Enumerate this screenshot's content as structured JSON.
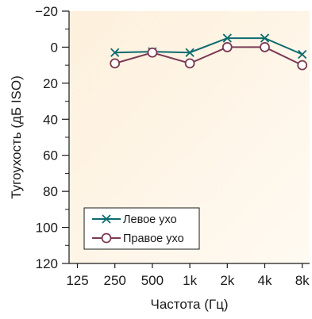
{
  "chart_data": {
    "type": "line",
    "title": "",
    "xlabel": "Частота (Гц)",
    "ylabel": "Тугоухость (дБ ISO)",
    "x_categories": [
      "125",
      "250",
      "500",
      "1k",
      "2k",
      "4k",
      "8k"
    ],
    "ylim": [
      -20,
      120
    ],
    "y_inverted": true,
    "y_ticks": [
      -20,
      0,
      20,
      40,
      60,
      80,
      100,
      120
    ],
    "y_tick_labels": [
      "−20",
      "0",
      "20",
      "40",
      "60",
      "80",
      "100",
      "120"
    ],
    "grid": false,
    "legend_position": "bottom-left",
    "background_gradient": [
      "#fdf0dc",
      "#fffaf2"
    ],
    "series": [
      {
        "name": "Левое ухо",
        "color": "#0d6b6f",
        "marker": "x",
        "x": [
          "250",
          "500",
          "1k",
          "2k",
          "4k",
          "8k"
        ],
        "values": [
          3,
          2.5,
          3,
          -5,
          -5,
          4
        ]
      },
      {
        "name": "Правое ухо",
        "color": "#7b3a55",
        "marker": "circle",
        "x": [
          "250",
          "500",
          "1k",
          "2k",
          "4k",
          "8k"
        ],
        "values": [
          9,
          3,
          9,
          0,
          0,
          10
        ]
      }
    ]
  }
}
